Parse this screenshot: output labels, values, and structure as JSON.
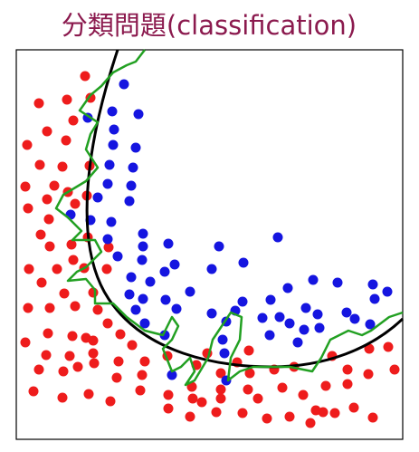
{
  "chart_data": {
    "type": "scatter",
    "title": "分類問題(classification)",
    "xlim": [
      18,
      445
    ],
    "ylim": [
      15,
      445
    ],
    "series": [
      {
        "color": "#ee1c1c",
        "x": [
          94,
          43,
          74,
          100,
          52,
          81,
          73,
          30,
          44,
          69,
          99,
          28,
          60,
          75,
          52,
          31,
          54,
          83,
          96,
          45,
          79,
          55,
          81,
          97,
          32,
          63,
          93,
          120,
          118,
          46,
          71,
          103,
          31,
          55,
          83,
          108,
          119,
          53,
          80,
          103,
          133,
          28,
          146,
          51,
          77,
          104,
          131,
          160,
          185,
          43,
          70,
          129,
          157,
          217,
          229,
          275,
          37,
          69,
          98,
          122,
          155,
          186,
          213,
          244,
          276,
          303,
          325,
          367,
          408,
          429,
          212,
          223,
          244,
          274,
          285,
          312,
          335,
          360,
          384,
          407,
          436,
          210,
          239,
          268,
          295,
          320,
          343,
          357,
          370,
          391,
          412,
          349,
          384,
          262,
          244,
          186,
          95,
          103,
          86
        ],
        "y": [
          416,
          386,
          390,
          392,
          355,
          367,
          345,
          340,
          318,
          316,
          317,
          294,
          295,
          288,
          280,
          270,
          258,
          275,
          284,
          241,
          230,
          228,
          213,
          238,
          203,
          203,
          204,
          227,
          203,
          188,
          176,
          177,
          160,
          160,
          162,
          158,
          143,
          132,
          129,
          124,
          131,
          122,
          119,
          108,
          107,
          99,
          101,
          101,
          107,
          92,
          90,
          83,
          86,
          97,
          110,
          113,
          68,
          61,
          65,
          57,
          69,
          64,
          60,
          70,
          88,
          92,
          95,
          107,
          115,
          117,
          73,
          56,
          60,
          70,
          60,
          72,
          64,
          74,
          76,
          87,
          92,
          40,
          45,
          44,
          38,
          40,
          33,
          45,
          44,
          50,
          39,
          47,
          92,
          100,
          88,
          49,
          127,
          110,
          95
        ]
      },
      {
        "color": "#1515e0",
        "x": [
          137,
          124,
          153,
          97,
          126,
          125,
          150,
          121,
          147,
          119,
          145,
          108,
          143,
          78,
          100,
          123,
          119,
          158,
          158,
          186,
          242,
          307,
          130,
          157,
          193,
          182,
          145,
          166,
          234,
          269,
          373,
          143,
          158,
          183,
          210,
          318,
          346,
          150,
          195,
          234,
          260,
          290,
          299,
          268,
          428,
          412,
          414,
          338,
          351,
          353,
          309,
          320,
          383,
          160,
          336,
          392,
          298,
          329,
          246,
          248,
          190,
          250,
          182,
          409,
          250
        ],
        "y": [
          407,
          377,
          374,
          370,
          357,
          340,
          337,
          318,
          315,
          297,
          295,
          282,
          278,
          263,
          257,
          255,
          236,
          242,
          228,
          231,
          228,
          238,
          217,
          213,
          208,
          200,
          194,
          189,
          203,
          210,
          188,
          175,
          170,
          169,
          178,
          182,
          191,
          158,
          159,
          154,
          157,
          149,
          169,
          167,
          178,
          186,
          170,
          160,
          153,
          138,
          150,
          143,
          155,
          143,
          136,
          148,
          130,
          122,
          125,
          110,
          86,
          80,
          130,
          142,
          145
        ]
      }
    ]
  }
}
